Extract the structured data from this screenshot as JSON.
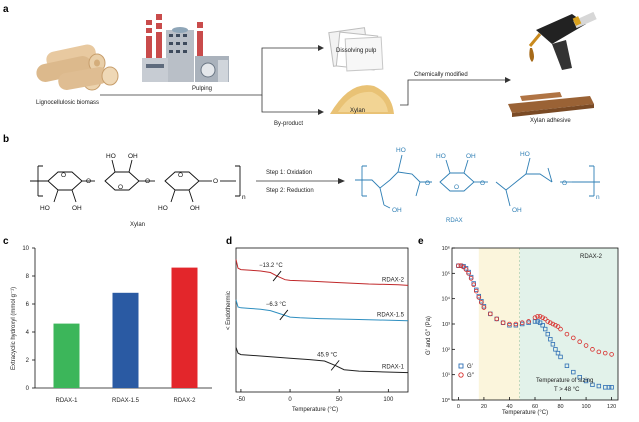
{
  "panel_a": {
    "letter": "a",
    "biomass_label": "Lignocellulosic biomass",
    "pulping_label": "Pulping",
    "dissolving_pulp_label": "Dissolving pulp",
    "byproduct_label": "By-product",
    "xylan_bag_label": "Xylan",
    "chem_mod_label": "Chemically modified",
    "adhesive_label": "Xylan adhesive"
  },
  "panel_b": {
    "letter": "b",
    "xylan_name": "Xylan",
    "rdax_name": "RDAX",
    "step1": "Step 1: Oxidation",
    "step2": "Step 2: Reduction",
    "subscript_n": "n",
    "ho": "HO",
    "oh": "OH",
    "o": "O"
  },
  "panel_c": {
    "letter": "c",
    "ylabel": "Extracyclic hydroxyl (mmol g⁻¹)",
    "chart_data": {
      "type": "bar",
      "categories": [
        "RDAX-1",
        "RDAX-1.5",
        "RDAX-2"
      ],
      "values": [
        4.6,
        6.8,
        8.6
      ],
      "colors": [
        "#3cb65a",
        "#2a5aa3",
        "#e3262b"
      ],
      "ylim": [
        0,
        10
      ],
      "yticks": [
        "0",
        "2",
        "4",
        "6",
        "8",
        "10"
      ]
    }
  },
  "panel_d": {
    "letter": "d",
    "ylabel": "< Endothermic",
    "xlabel": "Temperature (°C)",
    "xticks": [
      "-50",
      "0",
      "50",
      "100"
    ],
    "chart_data": {
      "type": "line",
      "xlim": [
        -55,
        120
      ],
      "series": [
        {
          "name": "RDAX-2",
          "color": "#c0282a",
          "tg_label": "−13.2 °C",
          "tg": -13.2,
          "x": [
            -55,
            -53,
            -50,
            -40,
            -30,
            -20,
            -13.2,
            -5,
            0,
            20,
            50,
            80,
            110,
            120
          ],
          "y": [
            9.2,
            8.6,
            8.5,
            8.45,
            8.4,
            8.3,
            8.05,
            7.8,
            7.75,
            7.7,
            7.6,
            7.5,
            7.45,
            7.4
          ]
        },
        {
          "name": "RDAX-1.5",
          "color": "#2f8fc0",
          "tg_label": "−6.3 °C",
          "tg": -6.3,
          "x": [
            -55,
            -53,
            -50,
            -40,
            -30,
            -20,
            -6.3,
            0,
            10,
            30,
            60,
            90,
            120
          ],
          "y": [
            6.4,
            5.9,
            5.85,
            5.8,
            5.75,
            5.65,
            5.35,
            5.2,
            5.15,
            5.1,
            5.05,
            5.0,
            4.95
          ]
        },
        {
          "name": "RDAX-1",
          "color": "#222222",
          "tg_label": "45.9 °C",
          "tg": 45.9,
          "x": [
            -55,
            -53,
            -50,
            -30,
            0,
            20,
            35,
            45.9,
            55,
            70,
            90,
            120
          ],
          "y": [
            3.1,
            2.7,
            2.6,
            2.5,
            2.35,
            2.25,
            2.15,
            1.85,
            1.55,
            1.45,
            1.4,
            1.35
          ]
        }
      ],
      "ylim": [
        0,
        10
      ]
    }
  },
  "panel_e": {
    "letter": "e",
    "ylabel": "G′ and G″ (Pa)",
    "xlabel": "Temperature (°C)",
    "title": "RDAX-2",
    "sizing_label_1": "Temperature of sizing",
    "sizing_label_2": "T > 48 °C",
    "legend_gp": "G′",
    "legend_gpp": "G″",
    "xticks": [
      "0",
      "20",
      "40",
      "60",
      "80",
      "100",
      "120"
    ],
    "yticks": [
      "10⁰",
      "10¹",
      "10²",
      "10³",
      "10⁴",
      "10⁵",
      "10⁶"
    ],
    "chart_data": {
      "type": "scatter",
      "xlim": [
        -5,
        125
      ],
      "ylim_log10": [
        0,
        6
      ],
      "yscale": "log",
      "shaded_regions": [
        {
          "from": 16,
          "to": 48,
          "color": "#fbf5dc"
        },
        {
          "from": 48,
          "to": 125,
          "color": "#e2f2ea"
        }
      ],
      "series": [
        {
          "name": "G′",
          "color": "#2f6fb5",
          "x": [
            0,
            2,
            4,
            6,
            8,
            10,
            12,
            14,
            16,
            18,
            20,
            25,
            30,
            35,
            40,
            45,
            50,
            55,
            60,
            62,
            64,
            66,
            68,
            70,
            72,
            74,
            76,
            78,
            80,
            85,
            90,
            95,
            100,
            105,
            110,
            115,
            118,
            120
          ],
          "y_log10": [
            5.3,
            5.3,
            5.28,
            5.2,
            5.05,
            4.85,
            4.6,
            4.35,
            4.1,
            3.9,
            3.7,
            3.4,
            3.2,
            3.05,
            2.95,
            2.95,
            3.0,
            3.05,
            3.1,
            3.1,
            3.05,
            2.95,
            2.8,
            2.6,
            2.4,
            2.2,
            2.0,
            1.85,
            1.7,
            1.35,
            1.1,
            0.9,
            0.75,
            0.6,
            0.55,
            0.5,
            0.5,
            0.5
          ]
        },
        {
          "name": "G″",
          "color": "#d9302e",
          "x": [
            0,
            2,
            4,
            6,
            8,
            10,
            12,
            14,
            16,
            18,
            20,
            25,
            30,
            35,
            40,
            45,
            50,
            55,
            60,
            62,
            64,
            66,
            68,
            70,
            72,
            74,
            76,
            78,
            80,
            85,
            90,
            95,
            100,
            105,
            110,
            115,
            120
          ],
          "y_log10": [
            5.3,
            5.3,
            5.25,
            5.15,
            5.0,
            4.8,
            4.55,
            4.3,
            4.05,
            3.85,
            3.65,
            3.4,
            3.2,
            3.05,
            3.0,
            3.0,
            3.05,
            3.1,
            3.25,
            3.3,
            3.3,
            3.25,
            3.2,
            3.1,
            3.05,
            3.0,
            2.95,
            2.9,
            2.8,
            2.6,
            2.45,
            2.3,
            2.15,
            2.0,
            1.9,
            1.85,
            1.8
          ]
        }
      ]
    }
  }
}
